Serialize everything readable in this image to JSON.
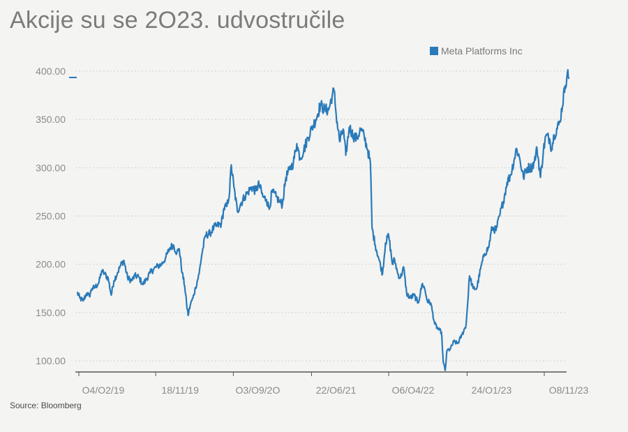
{
  "header": {
    "title": "Akcije su se 2O23. udvostručile"
  },
  "footer": {
    "source": "Source: Bloomberg"
  },
  "colors": {
    "series": "#2a7ab9",
    "grid": "#cfcfcf",
    "axis": "#555555",
    "text": "#8a8a8a"
  },
  "chart_data": {
    "type": "line",
    "title": "Akcije su se 2O23. udvostručile",
    "xlabel": "",
    "ylabel": "",
    "ylim": [
      90,
      405
    ],
    "y_ticks": [
      100,
      150,
      200,
      250,
      300,
      350,
      400
    ],
    "y_tick_labels": [
      "100.00",
      "150.00",
      "200.00",
      "250.00",
      "300.00",
      "350.00",
      "400.00"
    ],
    "x_range": [
      "2019-01-28",
      "2023-12-15"
    ],
    "x_ticks": [
      "2019-02-04",
      "2019-11-18",
      "2020-09-03",
      "2021-06-22",
      "2022-04-06",
      "2023-01-24",
      "2023-11-08"
    ],
    "x_tick_labels": [
      "O4/O2/19",
      "18/11/19",
      "O3/O9/2O",
      "22/O6/21",
      "O6/O4/22",
      "24/O1/23",
      "O8/11/23"
    ],
    "grid": "horizontal dotted",
    "legend": "top-right",
    "series": [
      {
        "name": "Meta Platforms Inc",
        "color": "#2a7ab9",
        "points": [
          [
            "2019-01-28",
            171
          ],
          [
            "2019-02-08",
            165
          ],
          [
            "2019-02-20",
            162
          ],
          [
            "2019-03-05",
            170
          ],
          [
            "2019-03-15",
            167
          ],
          [
            "2019-03-25",
            175
          ],
          [
            "2019-04-05",
            176
          ],
          [
            "2019-04-20",
            181
          ],
          [
            "2019-04-30",
            193
          ],
          [
            "2019-05-12",
            190
          ],
          [
            "2019-05-25",
            185
          ],
          [
            "2019-06-05",
            168
          ],
          [
            "2019-06-15",
            183
          ],
          [
            "2019-06-28",
            191
          ],
          [
            "2019-07-10",
            199
          ],
          [
            "2019-07-22",
            204
          ],
          [
            "2019-08-05",
            186
          ],
          [
            "2019-08-20",
            183
          ],
          [
            "2019-09-01",
            188
          ],
          [
            "2019-09-15",
            187
          ],
          [
            "2019-10-01",
            179
          ],
          [
            "2019-10-15",
            185
          ],
          [
            "2019-10-28",
            191
          ],
          [
            "2019-11-10",
            195
          ],
          [
            "2019-11-25",
            198
          ],
          [
            "2019-12-10",
            200
          ],
          [
            "2019-12-26",
            207
          ],
          [
            "2020-01-10",
            217
          ],
          [
            "2020-01-22",
            220
          ],
          [
            "2020-02-05",
            212
          ],
          [
            "2020-02-14",
            216
          ],
          [
            "2020-02-25",
            191
          ],
          [
            "2020-03-05",
            178
          ],
          [
            "2020-03-12",
            160
          ],
          [
            "2020-03-18",
            147
          ],
          [
            "2020-03-26",
            158
          ],
          [
            "2020-04-05",
            165
          ],
          [
            "2020-04-15",
            176
          ],
          [
            "2020-04-28",
            190
          ],
          [
            "2020-05-08",
            210
          ],
          [
            "2020-05-22",
            230
          ],
          [
            "2020-06-08",
            232
          ],
          [
            "2020-06-22",
            238
          ],
          [
            "2020-07-05",
            240
          ],
          [
            "2020-07-20",
            242
          ],
          [
            "2020-07-30",
            258
          ],
          [
            "2020-08-10",
            260
          ],
          [
            "2020-08-20",
            275
          ],
          [
            "2020-08-26",
            303
          ],
          [
            "2020-09-05",
            280
          ],
          [
            "2020-09-18",
            255
          ],
          [
            "2020-10-01",
            263
          ],
          [
            "2020-10-15",
            270
          ],
          [
            "2020-10-28",
            275
          ],
          [
            "2020-11-10",
            280
          ],
          [
            "2020-11-25",
            276
          ],
          [
            "2020-12-08",
            283
          ],
          [
            "2020-12-22",
            270
          ],
          [
            "2021-01-05",
            267
          ],
          [
            "2021-01-15",
            257
          ],
          [
            "2021-01-25",
            275
          ],
          [
            "2021-02-10",
            270
          ],
          [
            "2021-02-22",
            265
          ],
          [
            "2021-03-05",
            262
          ],
          [
            "2021-03-18",
            290
          ],
          [
            "2021-04-01",
            298
          ],
          [
            "2021-04-15",
            305
          ],
          [
            "2021-04-28",
            325
          ],
          [
            "2021-05-10",
            310
          ],
          [
            "2021-05-24",
            318
          ],
          [
            "2021-06-08",
            331
          ],
          [
            "2021-06-22",
            340
          ],
          [
            "2021-07-08",
            350
          ],
          [
            "2021-07-25",
            365
          ],
          [
            "2021-08-10",
            360
          ],
          [
            "2021-08-25",
            360
          ],
          [
            "2021-09-07",
            375
          ],
          [
            "2021-09-14",
            380
          ],
          [
            "2021-09-22",
            355
          ],
          [
            "2021-10-05",
            327
          ],
          [
            "2021-10-18",
            340
          ],
          [
            "2021-10-28",
            313
          ],
          [
            "2021-11-10",
            342
          ],
          [
            "2021-11-25",
            333
          ],
          [
            "2021-12-08",
            330
          ],
          [
            "2021-12-22",
            340
          ],
          [
            "2022-01-05",
            332
          ],
          [
            "2022-01-18",
            318
          ],
          [
            "2022-01-28",
            304
          ],
          [
            "2022-02-03",
            237
          ],
          [
            "2022-02-15",
            220
          ],
          [
            "2022-03-01",
            205
          ],
          [
            "2022-03-14",
            190
          ],
          [
            "2022-03-25",
            222
          ],
          [
            "2022-04-06",
            230
          ],
          [
            "2022-04-20",
            200
          ],
          [
            "2022-04-28",
            205
          ],
          [
            "2022-05-10",
            190
          ],
          [
            "2022-05-20",
            186
          ],
          [
            "2022-06-01",
            197
          ],
          [
            "2022-06-12",
            170
          ],
          [
            "2022-06-25",
            165
          ],
          [
            "2022-07-10",
            168
          ],
          [
            "2022-07-25",
            160
          ],
          [
            "2022-08-10",
            180
          ],
          [
            "2022-08-18",
            175
          ],
          [
            "2022-08-28",
            162
          ],
          [
            "2022-09-10",
            160
          ],
          [
            "2022-09-25",
            138
          ],
          [
            "2022-10-10",
            132
          ],
          [
            "2022-10-20",
            130
          ],
          [
            "2022-10-27",
            98
          ],
          [
            "2022-11-03",
            90
          ],
          [
            "2022-11-10",
            111
          ],
          [
            "2022-11-22",
            112
          ],
          [
            "2022-12-05",
            120
          ],
          [
            "2022-12-20",
            118
          ],
          [
            "2023-01-05",
            127
          ],
          [
            "2023-01-20",
            137
          ],
          [
            "2023-02-02",
            188
          ],
          [
            "2023-02-15",
            175
          ],
          [
            "2023-03-01",
            175
          ],
          [
            "2023-03-15",
            195
          ],
          [
            "2023-03-30",
            211
          ],
          [
            "2023-04-14",
            217
          ],
          [
            "2023-04-27",
            238
          ],
          [
            "2023-05-12",
            235
          ],
          [
            "2023-05-25",
            250
          ],
          [
            "2023-06-08",
            265
          ],
          [
            "2023-06-22",
            285
          ],
          [
            "2023-07-05",
            292
          ],
          [
            "2023-07-20",
            310
          ],
          [
            "2023-07-27",
            320
          ],
          [
            "2023-08-08",
            310
          ],
          [
            "2023-08-22",
            290
          ],
          [
            "2023-09-05",
            300
          ],
          [
            "2023-09-20",
            300
          ],
          [
            "2023-10-02",
            306
          ],
          [
            "2023-10-12",
            320
          ],
          [
            "2023-10-25",
            290
          ],
          [
            "2023-11-05",
            318
          ],
          [
            "2023-11-14",
            333
          ],
          [
            "2023-11-28",
            330
          ],
          [
            "2023-12-05",
            320
          ],
          [
            "2023-12-15",
            334
          ],
          [
            "2024-01-05",
            347
          ],
          [
            "2024-01-25",
            385
          ],
          [
            "2024-02-02",
            398
          ],
          [
            "2024-02-08",
            392
          ]
        ]
      }
    ]
  }
}
